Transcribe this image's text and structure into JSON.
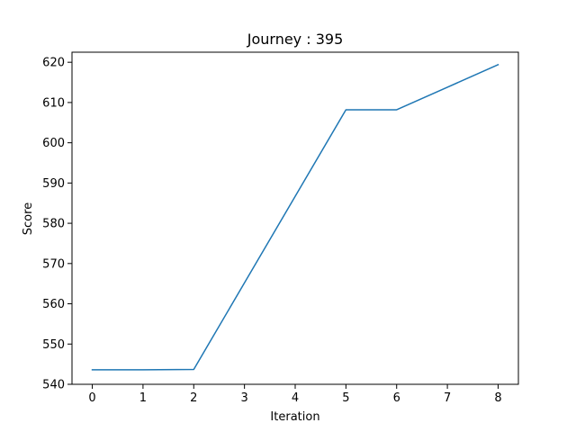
{
  "chart_data": {
    "type": "line",
    "title": "Journey : 395",
    "xlabel": "Iteration",
    "ylabel": "Score",
    "xlim": [
      -0.4,
      8.4
    ],
    "ylim": [
      540,
      622.5
    ],
    "xticks": [
      0,
      1,
      2,
      3,
      4,
      5,
      6,
      7,
      8
    ],
    "yticks": [
      540,
      550,
      560,
      570,
      580,
      590,
      600,
      610,
      620
    ],
    "grid": false,
    "series": [
      {
        "color": "#1f77b4",
        "x": [
          0,
          1,
          2,
          3,
          4,
          5,
          6,
          7,
          8
        ],
        "y": [
          543.6,
          543.6,
          543.7,
          565.2,
          586.7,
          608.2,
          608.2,
          613.8,
          619.4
        ]
      }
    ]
  }
}
